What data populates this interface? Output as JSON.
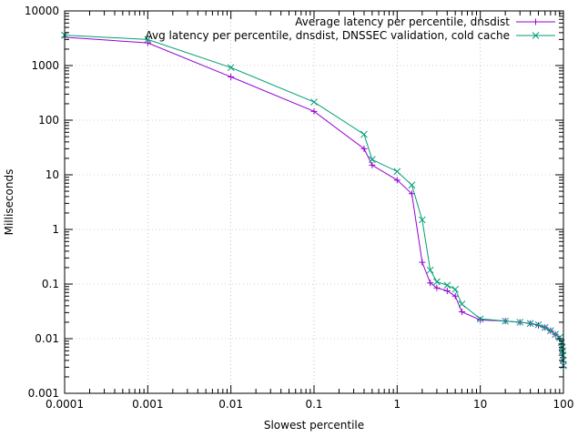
{
  "chart_data": {
    "type": "line",
    "xlabel": "Slowest percentile",
    "ylabel": "Milliseconds",
    "x_scale": "log",
    "y_scale": "log",
    "xlim": [
      0.0001,
      100
    ],
    "ylim": [
      0.001,
      10000
    ],
    "grid": true,
    "legend_position": "top-right",
    "x_ticks": [
      {
        "v": 0.0001,
        "label": "0.0001"
      },
      {
        "v": 0.001,
        "label": "0.001"
      },
      {
        "v": 0.01,
        "label": "0.01"
      },
      {
        "v": 0.1,
        "label": "0.1"
      },
      {
        "v": 1,
        "label": "1"
      },
      {
        "v": 10,
        "label": "10"
      },
      {
        "v": 100,
        "label": "100"
      }
    ],
    "y_ticks": [
      {
        "v": 0.001,
        "label": "0.001"
      },
      {
        "v": 0.01,
        "label": "0.01"
      },
      {
        "v": 0.1,
        "label": "0.1"
      },
      {
        "v": 1,
        "label": "1"
      },
      {
        "v": 10,
        "label": "10"
      },
      {
        "v": 100,
        "label": "100"
      },
      {
        "v": 1000,
        "label": "1000"
      },
      {
        "v": 10000,
        "label": "10000"
      }
    ],
    "series": [
      {
        "name": "Average latency per percentile, dnsdist",
        "color": "#9400d3",
        "marker": "plus",
        "points": [
          [
            0.0001,
            3300
          ],
          [
            0.001,
            2600
          ],
          [
            0.01,
            620
          ],
          [
            0.1,
            145
          ],
          [
            0.4,
            30
          ],
          [
            0.5,
            15
          ],
          [
            1,
            8
          ],
          [
            1.5,
            4.5
          ],
          [
            2,
            0.25
          ],
          [
            2.5,
            0.105
          ],
          [
            3,
            0.085
          ],
          [
            4,
            0.075
          ],
          [
            5,
            0.06
          ],
          [
            6,
            0.031
          ],
          [
            10,
            0.022
          ],
          [
            20,
            0.021
          ],
          [
            30,
            0.02
          ],
          [
            40,
            0.019
          ],
          [
            50,
            0.0175
          ],
          [
            60,
            0.016
          ],
          [
            70,
            0.014
          ],
          [
            80,
            0.012
          ],
          [
            90,
            0.01
          ],
          [
            95,
            0.008
          ],
          [
            97,
            0.0065
          ],
          [
            98,
            0.0055
          ],
          [
            99,
            0.0045
          ],
          [
            99.5,
            0.0038
          ],
          [
            100,
            0.003
          ]
        ]
      },
      {
        "name": "Avg latency per percentile, dnsdist, DNSSEC validation, cold cache",
        "color": "#009e73",
        "marker": "cross",
        "points": [
          [
            0.0001,
            3600
          ],
          [
            0.001,
            3000
          ],
          [
            0.01,
            920
          ],
          [
            0.1,
            215
          ],
          [
            0.4,
            55
          ],
          [
            0.5,
            19
          ],
          [
            1,
            11.5
          ],
          [
            1.5,
            6.5
          ],
          [
            2,
            1.5
          ],
          [
            2.5,
            0.18
          ],
          [
            3,
            0.11
          ],
          [
            4,
            0.095
          ],
          [
            5,
            0.08
          ],
          [
            6,
            0.043
          ],
          [
            10,
            0.023
          ],
          [
            20,
            0.021
          ],
          [
            30,
            0.02
          ],
          [
            40,
            0.019
          ],
          [
            50,
            0.018
          ],
          [
            60,
            0.016
          ],
          [
            70,
            0.014
          ],
          [
            80,
            0.012
          ],
          [
            90,
            0.0105
          ],
          [
            95,
            0.0085
          ],
          [
            97,
            0.007
          ],
          [
            98,
            0.006
          ],
          [
            99,
            0.005
          ],
          [
            99.5,
            0.004
          ],
          [
            100,
            0.0032
          ]
        ]
      }
    ]
  }
}
